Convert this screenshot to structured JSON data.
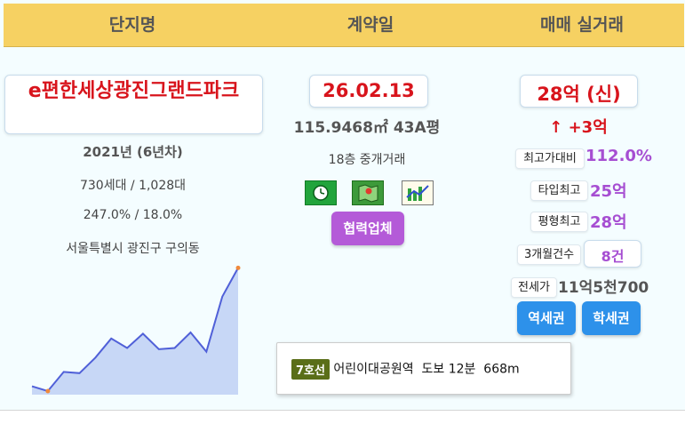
{
  "header": {
    "col1": "단지명",
    "col2": "계약일",
    "col3": "매매 실거래"
  },
  "complex": {
    "name": "e편한세상광진그랜드파크",
    "year": "2021년 (6년차)",
    "units": "730세대 / 1,028대",
    "ratio": "247.0% / 18.0%",
    "address": "서울특별시 광진구 구의동"
  },
  "contract": {
    "date": "26.02.13",
    "area": "115.9468㎡ 43A평",
    "floor_type": "18층 중개거래",
    "partner_button": "협력업체"
  },
  "trade": {
    "price": "28억 (신)",
    "change": "↑ +3억",
    "max_ratio_label": "최고가대비",
    "max_ratio_value": "112.0%",
    "type_max_label": "타입최고",
    "type_max_value": "25억",
    "size_max_label": "평형최고",
    "size_max_value": "28억",
    "count_label": "3개월건수",
    "count_value": "8건",
    "jeonse_label": "전세가",
    "jeonse_value": "11억5천700",
    "station_button": "역세권",
    "school_button": "학세권"
  },
  "transit": {
    "line": "7호선",
    "text": "어린이대공원역  도보 12분  668m"
  },
  "icons": [
    "clock-icon",
    "map-icon",
    "chart-icon"
  ],
  "colors": {
    "header": "#f6d162",
    "price_red": "#d8141c",
    "purple": "#a64ed2",
    "blue_button": "#2d91ea",
    "line7": "#5a6e18"
  },
  "chart_data": {
    "type": "area",
    "x": [
      1,
      2,
      3,
      4,
      5,
      6,
      7,
      8,
      9,
      10,
      11,
      12,
      13,
      14
    ],
    "values": [
      7,
      3,
      19,
      18,
      31,
      47,
      39,
      51,
      38,
      39,
      52,
      36,
      82,
      106
    ],
    "ylim": [
      0,
      110
    ],
    "grid": false,
    "highlight_points": [
      1,
      13
    ]
  }
}
